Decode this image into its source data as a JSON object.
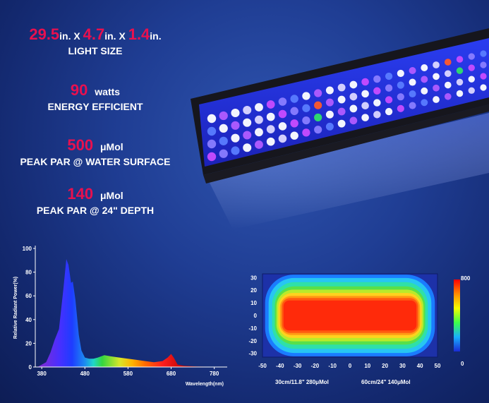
{
  "specs": {
    "size": {
      "dim1": "29.5",
      "unit1": "in.",
      "x1": "X",
      "dim2": "4.7",
      "unit2": "in.",
      "x2": "X",
      "dim3": "1.4",
      "unit3": "in.",
      "label": "LIGHT SIZE"
    },
    "power": {
      "value": "90",
      "unit": "watts",
      "label": "ENERGY EFFICIENT"
    },
    "par_surface": {
      "value": "500",
      "unit": "μMol",
      "label": "PEAK PAR @ WATER SURFACE"
    },
    "par_depth": {
      "value": "140",
      "unit": "μMol",
      "label": "PEAK PAR @ 24\" DEPTH"
    }
  },
  "chart_data": [
    {
      "type": "area",
      "ylabel": "Relative Radiant Power(%)",
      "xlabel": "Wavelength(nm)",
      "xlim": [
        365,
        810
      ],
      "ylim": [
        0,
        100
      ],
      "xticks": [
        380,
        480,
        580,
        680,
        780
      ],
      "yticks": [
        0,
        20,
        40,
        60,
        80,
        100
      ],
      "x": [
        370,
        390,
        400,
        410,
        420,
        430,
        437,
        442,
        448,
        452,
        458,
        466,
        472,
        480,
        490,
        500,
        510,
        525,
        540,
        560,
        580,
        600,
        620,
        640,
        660,
        672,
        680,
        686,
        695,
        710,
        740,
        780,
        800
      ],
      "y": [
        0,
        4,
        12,
        23,
        32,
        65,
        91,
        86,
        71,
        72,
        57,
        27,
        14,
        8,
        7,
        7,
        8,
        10,
        9,
        8,
        7,
        6,
        5,
        4,
        5,
        8,
        11,
        8,
        2,
        1,
        0.5,
        0.2,
        0
      ]
    },
    {
      "type": "heatmap",
      "xticks": [
        -50,
        -40,
        -30,
        -20,
        -10,
        0,
        10,
        20,
        30,
        40,
        50
      ],
      "yticks": [
        30,
        20,
        10,
        0,
        -10,
        -20,
        -30
      ],
      "xlim": [
        -50,
        50
      ],
      "ylim": [
        -33,
        33
      ],
      "scale_min": "0",
      "scale_max": "800",
      "annotations": [
        "30cm/11.8\"  280μMol",
        "60cm/24\"  140μMol"
      ]
    }
  ]
}
